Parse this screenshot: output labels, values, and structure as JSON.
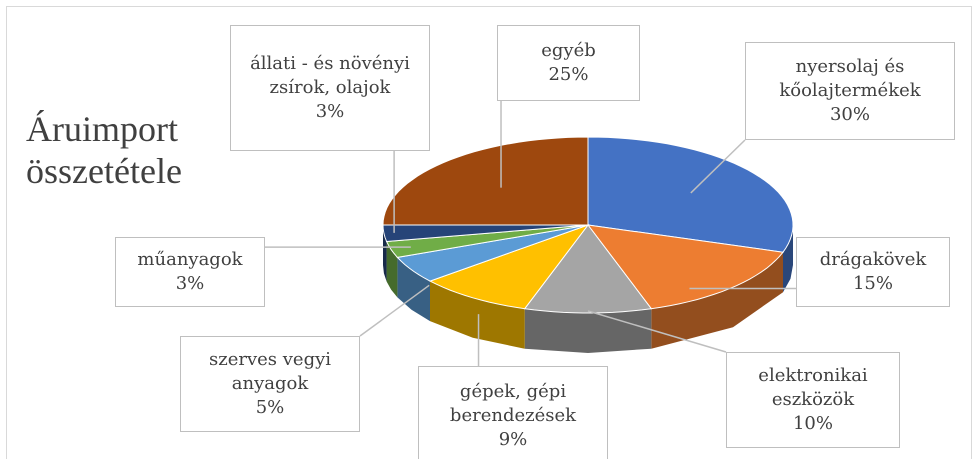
{
  "chart_data": {
    "type": "pie",
    "title": "Áruimport összetétele",
    "categories": [
      "nyersolaj és kőolajtermékek",
      "drágakövek",
      "elektronikai eszközök",
      "gépek, gépi berendezések",
      "szerves vegyi anyagok",
      "műanyagok",
      "állati - és növényi zsírok, olajok",
      "egyéb"
    ],
    "values": [
      30,
      15,
      10,
      9,
      5,
      3,
      3,
      25
    ],
    "value_labels": [
      "30%",
      "15%",
      "10%",
      "9%",
      "5%",
      "3%",
      "3%",
      "25%"
    ],
    "colors": [
      "#4472c4",
      "#ed7d31",
      "#a5a5a5",
      "#ffc000",
      "#5b9bd5",
      "#70ad47",
      "#264478",
      "#9e480e"
    ]
  }
}
